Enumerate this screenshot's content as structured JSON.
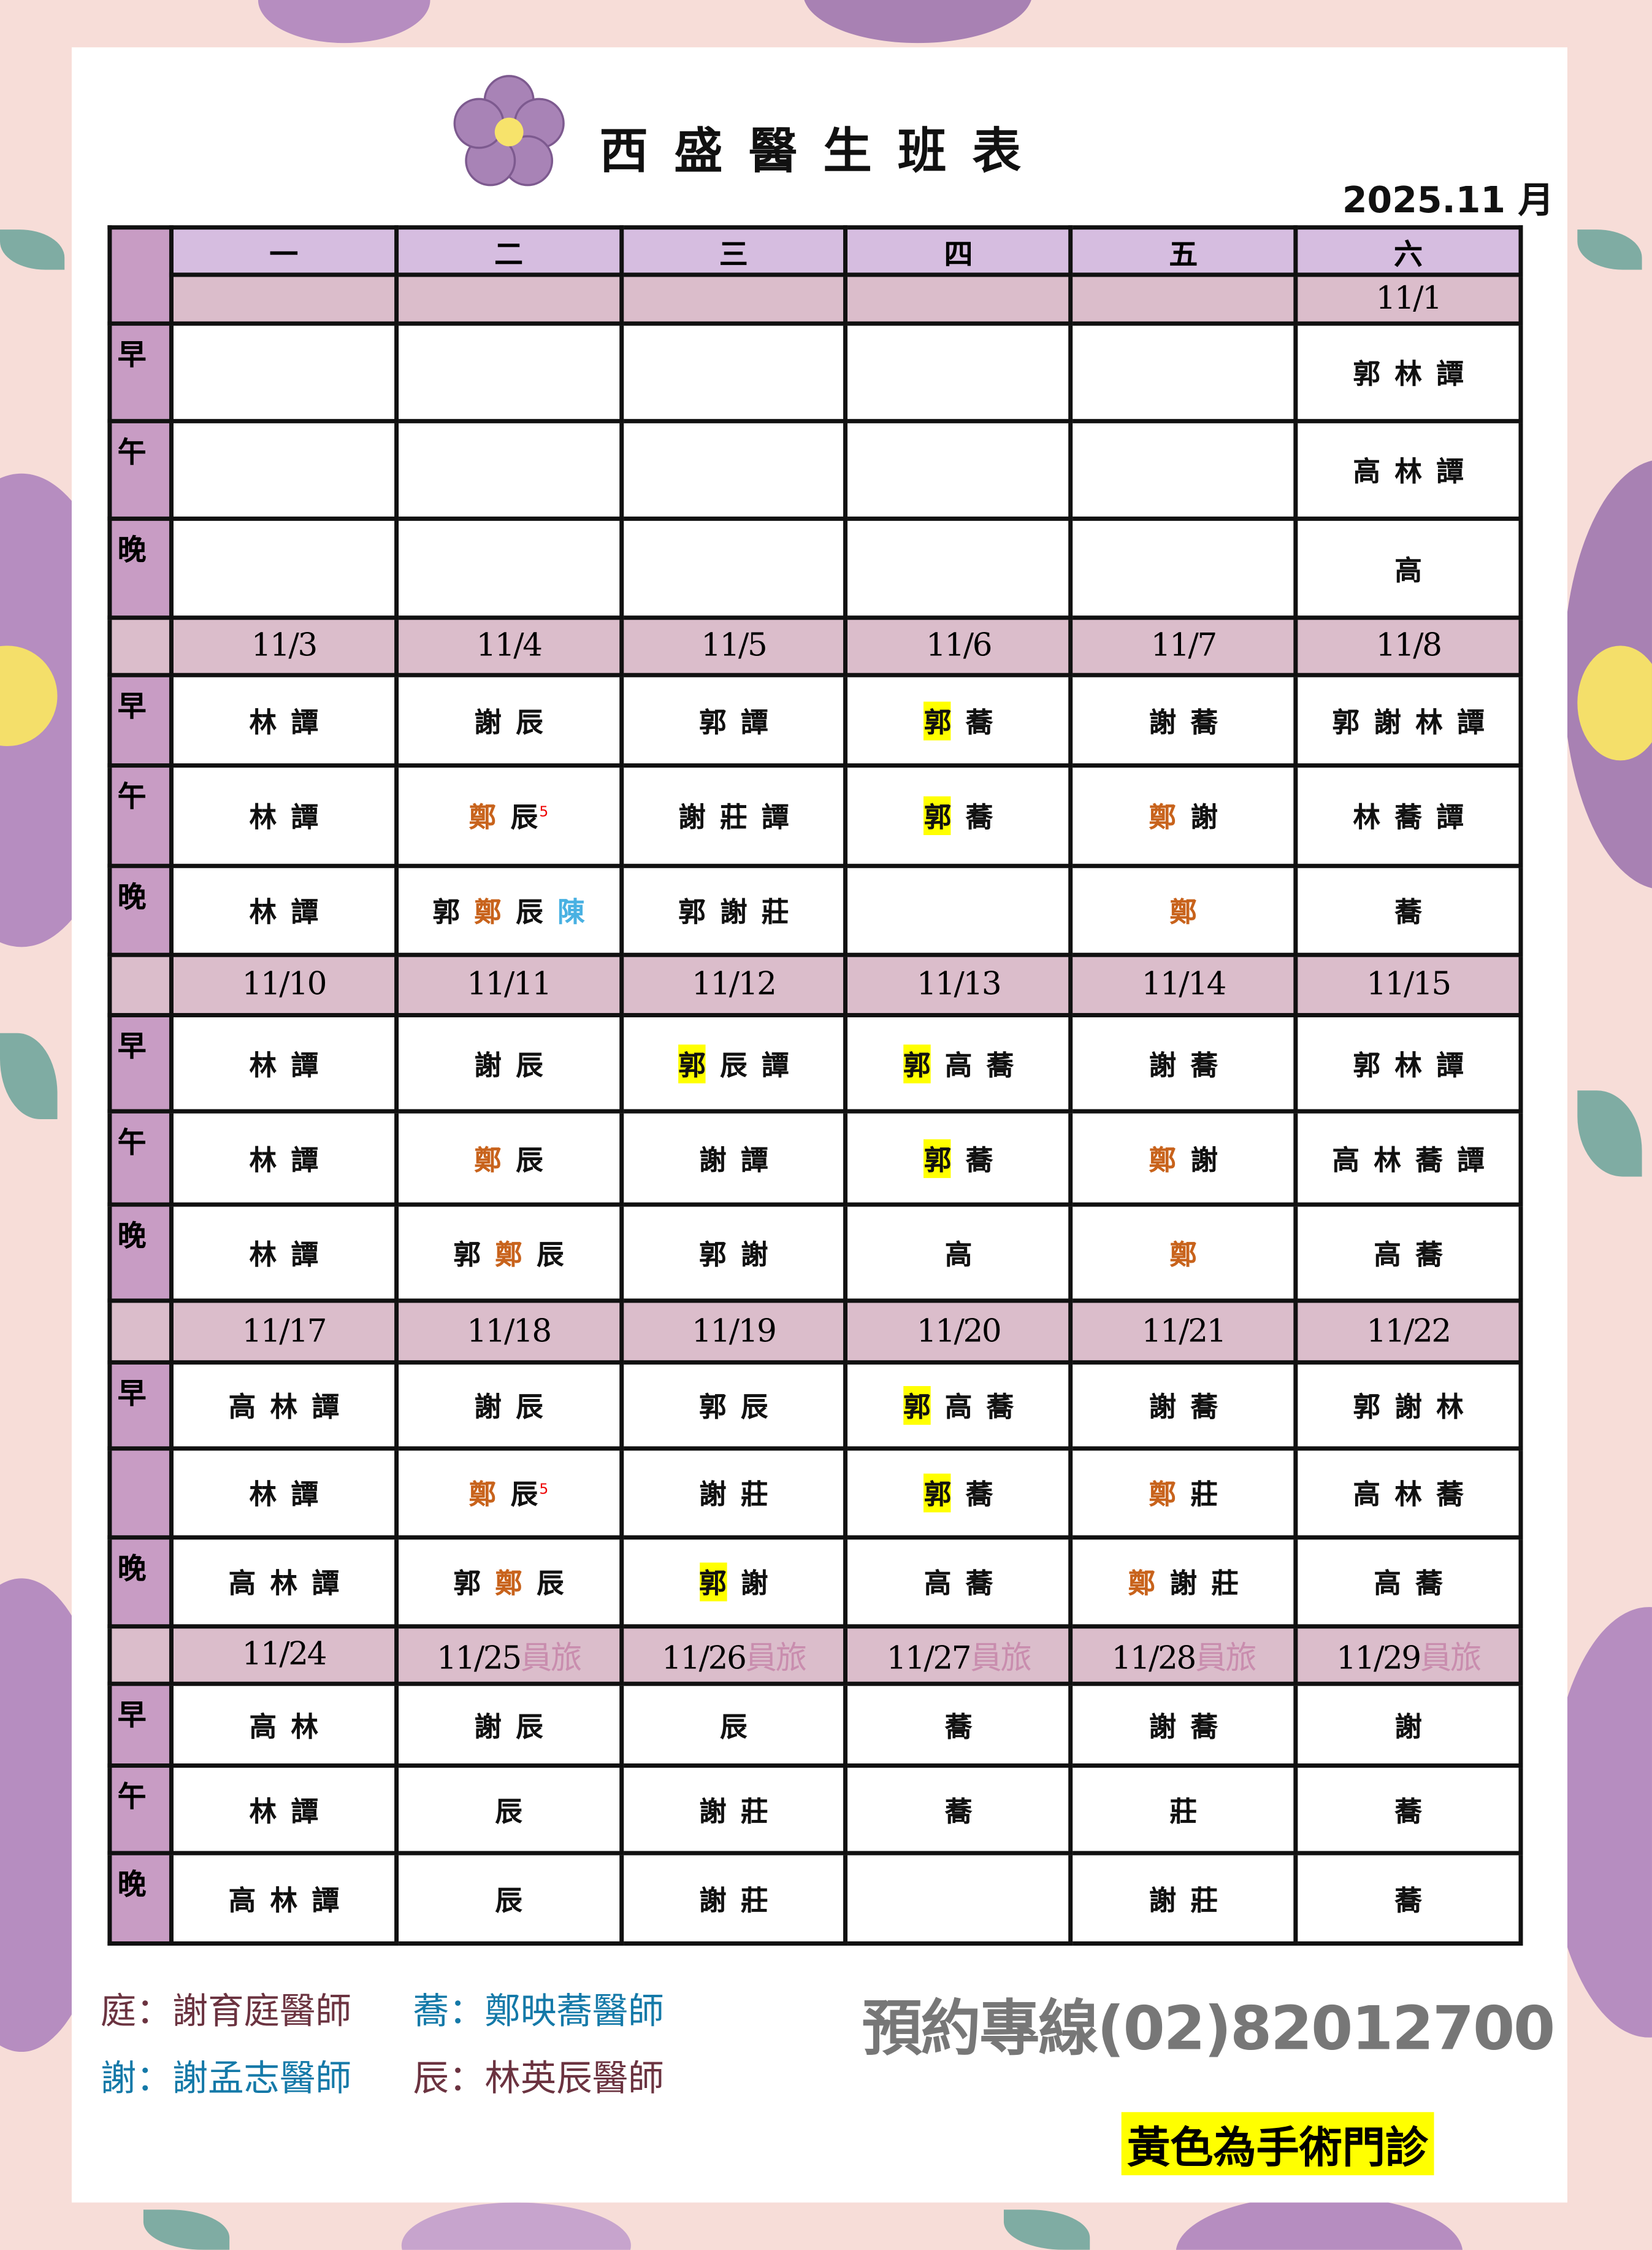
{
  "header": {
    "title": "西盛醫生班表",
    "month": "2025.11 月"
  },
  "colors": {
    "surgery": "#ffff00",
    "weekday_row": "#d6bde0",
    "date_row": "#dbbdcb",
    "side_col": "#c89cc4",
    "orange": "#c8631c",
    "blue": "#49b1e2"
  },
  "weekdays": [
    "一",
    "二",
    "三",
    "四",
    "五",
    "六"
  ],
  "weeks": [
    {
      "dates": [
        {
          "d": ""
        },
        {
          "d": ""
        },
        {
          "d": ""
        },
        {
          "d": ""
        },
        {
          "d": ""
        },
        {
          "d": "11/1"
        }
      ],
      "rows": [
        {
          "label": "早",
          "cells": [
            [],
            [],
            [],
            [],
            [],
            [
              {
                "t": "郭"
              },
              {
                "t": "林"
              },
              {
                "t": "譚"
              }
            ]
          ]
        },
        {
          "label": "午",
          "cells": [
            [],
            [],
            [],
            [],
            [],
            [
              {
                "t": "高"
              },
              {
                "t": "林"
              },
              {
                "t": "譚"
              }
            ]
          ]
        },
        {
          "label": "晚",
          "cells": [
            [],
            [],
            [],
            [],
            [],
            [
              {
                "t": "高"
              }
            ]
          ]
        }
      ]
    },
    {
      "dates": [
        {
          "d": "11/3"
        },
        {
          "d": "11/4"
        },
        {
          "d": "11/5"
        },
        {
          "d": "11/6"
        },
        {
          "d": "11/7"
        },
        {
          "d": "11/8"
        }
      ],
      "rows": [
        {
          "label": "早",
          "cells": [
            [
              {
                "t": "林"
              },
              {
                "t": "譚"
              }
            ],
            [
              {
                "t": "謝"
              },
              {
                "t": "辰"
              }
            ],
            [
              {
                "t": "郭"
              },
              {
                "t": "譚"
              }
            ],
            [
              {
                "t": "郭",
                "mark": "surgery"
              },
              {
                "t": "蕎"
              }
            ],
            [
              {
                "t": "謝"
              },
              {
                "t": "蕎"
              }
            ],
            [
              {
                "t": "郭"
              },
              {
                "t": "謝"
              },
              {
                "t": "林"
              },
              {
                "t": "譚"
              }
            ]
          ]
        },
        {
          "label": "午",
          "cells": [
            [
              {
                "t": "林"
              },
              {
                "t": "譚"
              }
            ],
            [
              {
                "t": "鄭",
                "mark": "orange"
              },
              {
                "t": "辰"
              },
              {
                "t": "5",
                "mark": "sup"
              }
            ],
            [
              {
                "t": "謝"
              },
              {
                "t": "莊"
              },
              {
                "t": "譚"
              }
            ],
            [
              {
                "t": "郭",
                "mark": "surgery"
              },
              {
                "t": "蕎"
              }
            ],
            [
              {
                "t": "鄭",
                "mark": "orange"
              },
              {
                "t": "謝"
              }
            ],
            [
              {
                "t": "林"
              },
              {
                "t": "蕎"
              },
              {
                "t": "譚"
              }
            ]
          ]
        },
        {
          "label": "晚",
          "cells": [
            [
              {
                "t": "林"
              },
              {
                "t": "譚"
              }
            ],
            [
              {
                "t": "郭"
              },
              {
                "t": "鄭",
                "mark": "orange"
              },
              {
                "t": "辰"
              },
              {
                "t": "陳",
                "mark": "blue"
              }
            ],
            [
              {
                "t": "郭"
              },
              {
                "t": "謝"
              },
              {
                "t": "莊"
              }
            ],
            [],
            [
              {
                "t": "鄭",
                "mark": "orange"
              }
            ],
            [
              {
                "t": "蕎"
              }
            ]
          ]
        }
      ]
    },
    {
      "dates": [
        {
          "d": "11/10"
        },
        {
          "d": "11/11"
        },
        {
          "d": "11/12"
        },
        {
          "d": "11/13"
        },
        {
          "d": "11/14"
        },
        {
          "d": "11/15"
        }
      ],
      "rows": [
        {
          "label": "早",
          "cells": [
            [
              {
                "t": "林"
              },
              {
                "t": "譚"
              }
            ],
            [
              {
                "t": "謝"
              },
              {
                "t": "辰"
              }
            ],
            [
              {
                "t": "郭",
                "mark": "surgery"
              },
              {
                "t": "辰"
              },
              {
                "t": "譚"
              }
            ],
            [
              {
                "t": "郭",
                "mark": "surgery"
              },
              {
                "t": "高"
              },
              {
                "t": "蕎"
              }
            ],
            [
              {
                "t": "謝"
              },
              {
                "t": "蕎"
              }
            ],
            [
              {
                "t": "郭"
              },
              {
                "t": "林"
              },
              {
                "t": "譚"
              }
            ]
          ]
        },
        {
          "label": "午",
          "cells": [
            [
              {
                "t": "林"
              },
              {
                "t": "譚"
              }
            ],
            [
              {
                "t": "鄭",
                "mark": "orange"
              },
              {
                "t": "辰"
              }
            ],
            [
              {
                "t": "謝"
              },
              {
                "t": "譚"
              }
            ],
            [
              {
                "t": "郭",
                "mark": "surgery"
              },
              {
                "t": "蕎"
              }
            ],
            [
              {
                "t": "鄭",
                "mark": "orange"
              },
              {
                "t": "謝"
              }
            ],
            [
              {
                "t": "高"
              },
              {
                "t": "林"
              },
              {
                "t": "蕎"
              },
              {
                "t": "譚"
              }
            ]
          ]
        },
        {
          "label": "晚",
          "cells": [
            [
              {
                "t": "林"
              },
              {
                "t": "譚"
              }
            ],
            [
              {
                "t": "郭"
              },
              {
                "t": "鄭",
                "mark": "orange"
              },
              {
                "t": "辰"
              }
            ],
            [
              {
                "t": "郭"
              },
              {
                "t": "謝"
              }
            ],
            [
              {
                "t": "高"
              }
            ],
            [
              {
                "t": "鄭",
                "mark": "orange"
              }
            ],
            [
              {
                "t": "高"
              },
              {
                "t": "蕎"
              }
            ]
          ]
        }
      ]
    },
    {
      "dates": [
        {
          "d": "11/17"
        },
        {
          "d": "11/18"
        },
        {
          "d": "11/19"
        },
        {
          "d": "11/20"
        },
        {
          "d": "11/21"
        },
        {
          "d": "11/22"
        }
      ],
      "rows": [
        {
          "label": "早",
          "cells": [
            [
              {
                "t": "高"
              },
              {
                "t": "林"
              },
              {
                "t": "譚"
              }
            ],
            [
              {
                "t": "謝"
              },
              {
                "t": "辰"
              }
            ],
            [
              {
                "t": "郭"
              },
              {
                "t": "辰"
              }
            ],
            [
              {
                "t": "郭",
                "mark": "surgery"
              },
              {
                "t": "高"
              },
              {
                "t": "蕎"
              }
            ],
            [
              {
                "t": "謝"
              },
              {
                "t": "蕎"
              }
            ],
            [
              {
                "t": "郭"
              },
              {
                "t": "謝"
              },
              {
                "t": "林"
              }
            ]
          ]
        },
        {
          "label": "",
          "cells": [
            [
              {
                "t": "林"
              },
              {
                "t": "譚"
              }
            ],
            [
              {
                "t": "鄭",
                "mark": "orange"
              },
              {
                "t": "辰"
              },
              {
                "t": "5",
                "mark": "sup"
              }
            ],
            [
              {
                "t": "謝"
              },
              {
                "t": "莊"
              }
            ],
            [
              {
                "t": "郭",
                "mark": "surgery"
              },
              {
                "t": "蕎"
              }
            ],
            [
              {
                "t": "鄭",
                "mark": "orange"
              },
              {
                "t": "莊"
              }
            ],
            [
              {
                "t": "高"
              },
              {
                "t": "林"
              },
              {
                "t": "蕎"
              }
            ]
          ]
        },
        {
          "label": "晚",
          "cells": [
            [
              {
                "t": "高"
              },
              {
                "t": "林"
              },
              {
                "t": "譚"
              }
            ],
            [
              {
                "t": "郭"
              },
              {
                "t": "鄭",
                "mark": "orange"
              },
              {
                "t": "辰"
              }
            ],
            [
              {
                "t": "郭",
                "mark": "surgery"
              },
              {
                "t": "謝"
              }
            ],
            [
              {
                "t": "高"
              },
              {
                "t": "蕎"
              }
            ],
            [
              {
                "t": "鄭",
                "mark": "orange"
              },
              {
                "t": "謝"
              },
              {
                "t": "莊"
              }
            ],
            [
              {
                "t": "高"
              },
              {
                "t": "蕎"
              }
            ]
          ]
        }
      ]
    },
    {
      "dates": [
        {
          "d": "11/24"
        },
        {
          "d": "11/25",
          "note": "員旅"
        },
        {
          "d": "11/26",
          "note": "員旅"
        },
        {
          "d": "11/27",
          "note": "員旅"
        },
        {
          "d": "11/28",
          "note": "員旅"
        },
        {
          "d": "11/29",
          "note": "員旅"
        }
      ],
      "rows": [
        {
          "label": "早",
          "cells": [
            [
              {
                "t": "高"
              },
              {
                "t": "林"
              }
            ],
            [
              {
                "t": "謝"
              },
              {
                "t": "辰"
              }
            ],
            [
              {
                "t": "辰"
              }
            ],
            [
              {
                "t": "蕎"
              }
            ],
            [
              {
                "t": "謝"
              },
              {
                "t": "蕎"
              }
            ],
            [
              {
                "t": "謝"
              }
            ]
          ]
        },
        {
          "label": "午",
          "cells": [
            [
              {
                "t": "林"
              },
              {
                "t": "譚"
              }
            ],
            [
              {
                "t": "辰"
              }
            ],
            [
              {
                "t": "謝"
              },
              {
                "t": "莊"
              }
            ],
            [
              {
                "t": "蕎"
              }
            ],
            [
              {
                "t": "莊"
              }
            ],
            [
              {
                "t": "蕎"
              }
            ]
          ]
        },
        {
          "label": "晚",
          "cells": [
            [
              {
                "t": "高"
              },
              {
                "t": "林"
              },
              {
                "t": "譚"
              }
            ],
            [
              {
                "t": "辰"
              }
            ],
            [
              {
                "t": "謝"
              },
              {
                "t": "莊"
              }
            ],
            [],
            [
              {
                "t": "謝"
              },
              {
                "t": "莊"
              }
            ],
            [
              {
                "t": "蕎"
              }
            ]
          ]
        }
      ]
    }
  ],
  "legend": [
    {
      "text": "庭：謝育庭醫師",
      "color": "#6b3340"
    },
    {
      "text": "蕎：鄭映蕎醫師",
      "color": "#1479a8"
    },
    {
      "text": "謝：謝孟志醫師",
      "color": "#1479a8"
    },
    {
      "text": "辰：林英辰醫師",
      "color": "#6b3340"
    }
  ],
  "phone": "預約專線(02)82012700",
  "surgery_note": "黃色為手術門診"
}
